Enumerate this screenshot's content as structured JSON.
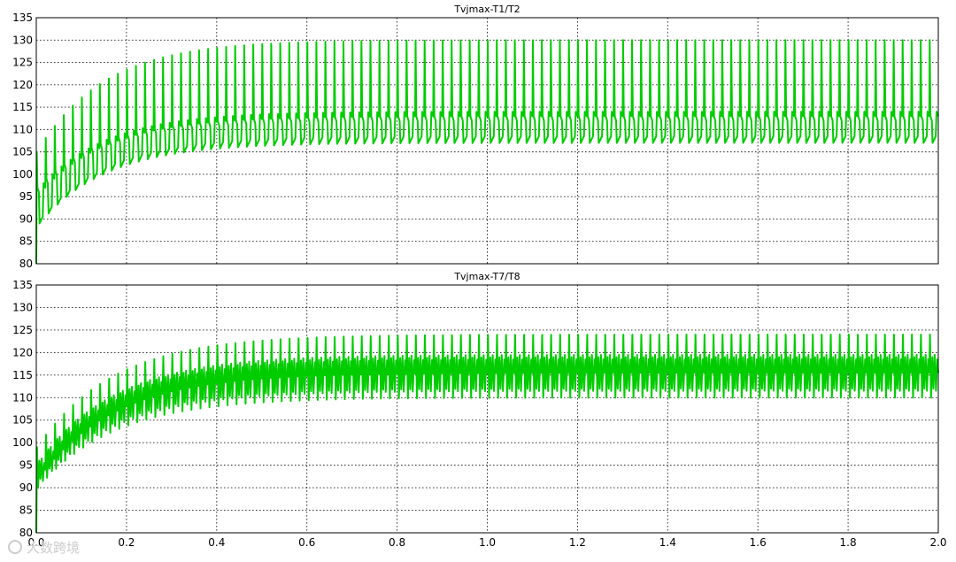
{
  "chart_data": [
    {
      "type": "line",
      "title": "Tvjmax-T1/T2",
      "xlim": [
        0.0,
        2.0
      ],
      "ylim": [
        80,
        135
      ],
      "x_ticks": [
        0.0,
        0.2,
        0.4,
        0.6,
        0.8,
        1.0,
        1.2,
        1.4,
        1.6,
        1.8,
        2.0
      ],
      "y_ticks": [
        80,
        85,
        90,
        95,
        100,
        105,
        110,
        115,
        120,
        125,
        130,
        135
      ],
      "grid": true,
      "series": [
        {
          "color": "#00cc00",
          "waveform": "pulsed",
          "cycles_per_unit_x": 50,
          "start_x": 0.0,
          "start_y": 80,
          "envelope_time_constant": 0.15,
          "max_start": 105,
          "max_steady": 130,
          "min_start": 89,
          "min_steady": 107,
          "pulse_base_start": 97,
          "pulse_base_steady": 113
        }
      ]
    },
    {
      "type": "line",
      "title": "Tvjmax-T7/T8",
      "xlim": [
        0.0,
        2.0
      ],
      "ylim": [
        80,
        135
      ],
      "x_ticks": [
        0.0,
        0.2,
        0.4,
        0.6,
        0.8,
        1.0,
        1.2,
        1.4,
        1.6,
        1.8,
        2.0
      ],
      "y_ticks": [
        80,
        85,
        90,
        95,
        100,
        105,
        110,
        115,
        120,
        125,
        130,
        135
      ],
      "grid": true,
      "series": [
        {
          "color": "#00cc00",
          "waveform": "dense",
          "cycles_per_unit_x": 50,
          "start_x": 0.0,
          "start_y": 80,
          "envelope_time_constant": 0.17,
          "max_start": 99,
          "max_steady": 124,
          "min_start": 90,
          "min_steady": 110,
          "inner_max_start": 96,
          "inner_max_steady": 119,
          "inner_min_start": 92,
          "inner_min_steady": 112
        }
      ]
    }
  ],
  "watermark": {
    "text": "大数跨境",
    "color": "#cccccc"
  }
}
